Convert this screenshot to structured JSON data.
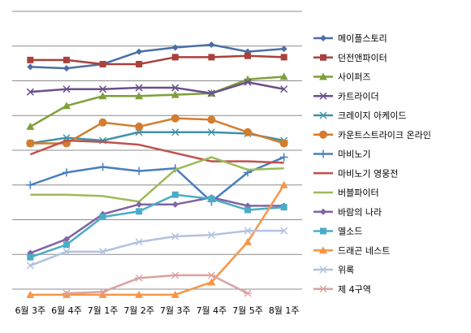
{
  "chart_data": {
    "type": "line",
    "categories": [
      "6월 3주",
      "6월 4주",
      "7월 1주",
      "7월 2주",
      "7월 3주",
      "7월 4주",
      "7월 5주",
      "8월 1주"
    ],
    "ranks": 20,
    "y_axis": "rank (1 = top)",
    "grid": "horizontal",
    "legend_position": "right",
    "series": [
      {
        "name": "메이플스토리",
        "color": "#4a6fa5",
        "marker": "diamond",
        "values": [
          4.0,
          4.1,
          3.8,
          2.9,
          2.6,
          2.4,
          2.9,
          2.7
        ]
      },
      {
        "name": "던전앤파이터",
        "color": "#a9413c",
        "marker": "square",
        "values": [
          3.5,
          3.5,
          3.8,
          3.8,
          3.3,
          3.3,
          3.2,
          3.3
        ]
      },
      {
        "name": "사이퍼즈",
        "color": "#7e9f3a",
        "marker": "triangle",
        "values": [
          8.3,
          6.8,
          6.1,
          6.1,
          6.0,
          5.9,
          4.9,
          4.7
        ]
      },
      {
        "name": "카트라이더",
        "color": "#6b4f8c",
        "marker": "x",
        "values": [
          5.8,
          5.6,
          5.6,
          5.5,
          5.5,
          5.9,
          5.1,
          5.6
        ]
      },
      {
        "name": "크레이지 아케이드",
        "color": "#3f92a9",
        "marker": "star",
        "values": [
          9.5,
          9.1,
          9.3,
          8.7,
          8.7,
          8.7,
          8.8,
          9.3
        ]
      },
      {
        "name": "카운트스트라이크 온라인",
        "color": "#d27c2e",
        "marker": "circle",
        "values": [
          9.5,
          9.5,
          8.0,
          8.3,
          7.7,
          7.8,
          8.7,
          9.5
        ]
      },
      {
        "name": "마비노기",
        "color": "#4a7ebf",
        "marker": "plus",
        "values": [
          12.5,
          11.6,
          11.2,
          11.5,
          11.3,
          13.7,
          11.6,
          10.5
        ]
      },
      {
        "name": "마비노기 영웅전",
        "color": "#c0504d",
        "marker": "none",
        "values": [
          10.3,
          9.3,
          9.4,
          9.6,
          10.2,
          10.8,
          10.8,
          10.9
        ]
      },
      {
        "name": "버블파이터",
        "color": "#9bbb59",
        "marker": "none",
        "values": [
          13.2,
          13.2,
          13.3,
          13.7,
          11.4,
          10.5,
          11.4,
          11.3
        ]
      },
      {
        "name": "바람의 나라",
        "color": "#8064a2",
        "marker": "diamond",
        "values": [
          17.4,
          16.4,
          14.6,
          13.9,
          13.9,
          13.4,
          14.0,
          14.0
        ]
      },
      {
        "name": "엘소드",
        "color": "#4bacc6",
        "marker": "square",
        "values": [
          17.7,
          16.8,
          14.8,
          14.4,
          13.2,
          13.5,
          14.3,
          14.1
        ]
      },
      {
        "name": "드래곤 네스트",
        "color": "#f79646",
        "marker": "triangle",
        "values": [
          20.4,
          20.4,
          20.4,
          20.4,
          20.4,
          19.5,
          16.6,
          12.5
        ]
      },
      {
        "name": "위록",
        "color": "#b2c2e0",
        "marker": "x",
        "values": [
          18.3,
          17.3,
          17.3,
          16.6,
          16.2,
          16.1,
          15.8,
          15.8
        ]
      },
      {
        "name": "제 4구역",
        "color": "#d9a3a1",
        "marker": "star",
        "values": [
          null,
          20.3,
          20.2,
          19.2,
          19.0,
          19.0,
          20.3,
          null
        ]
      }
    ]
  }
}
